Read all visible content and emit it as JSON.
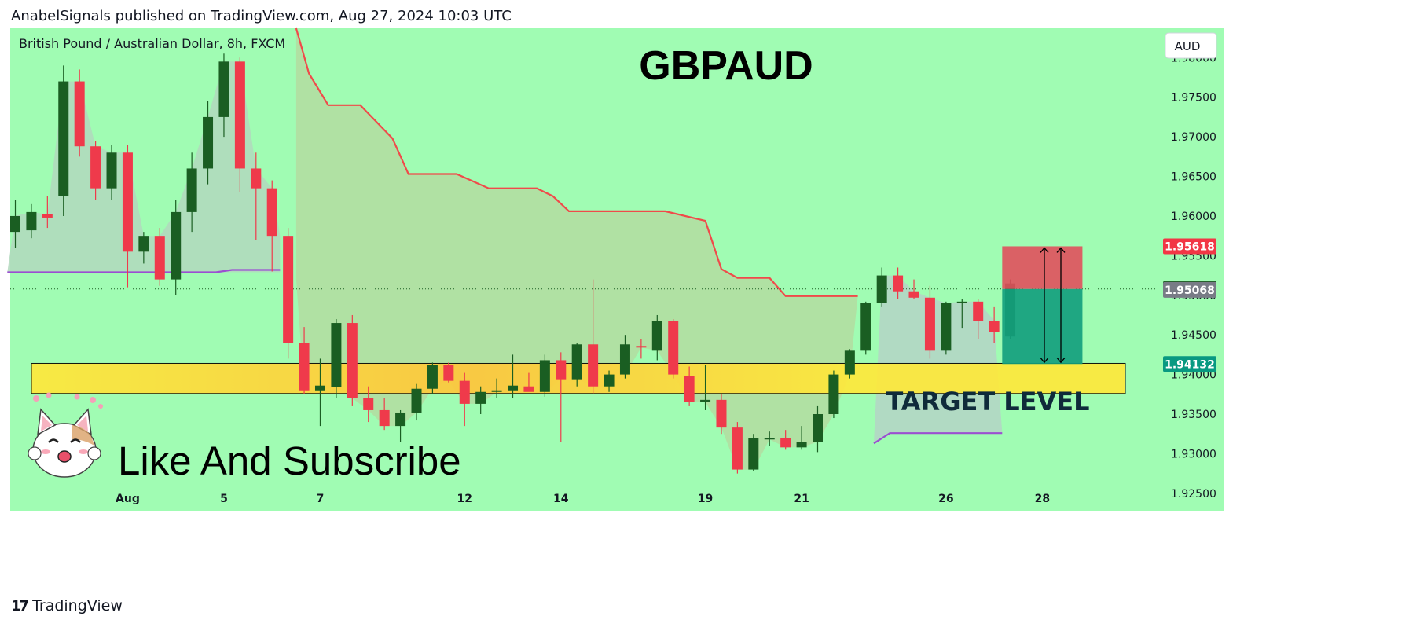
{
  "header": {
    "published": "AnabelSignals published on TradingView.com, Aug 27, 2024 10:03 UTC"
  },
  "footer": {
    "brand": "TradingView",
    "brand_logo": "17"
  },
  "colors": {
    "background": "#a0fcb3",
    "bull": "#1a5e22",
    "bear": "#ef3a4b",
    "resistance": "#f04a4a",
    "support": "#9b4fd1",
    "zone": "#ffe93b",
    "zone_center": "#ffc73b",
    "stop": "#e0505c",
    "target": "#13a07e"
  },
  "chart_data": {
    "type": "candlestick",
    "symbol_label": "British Pound  / Australian Dollar, 8h, FXCM",
    "title": "GBPAUD",
    "currency": "AUD",
    "annotations": {
      "target": "TARGET LEVEL",
      "cta": "Like And Subscribe"
    },
    "ylim": [
      1.9228,
      1.9837
    ],
    "yticks": [
      "1.98000",
      "1.97500",
      "1.97000",
      "1.96500",
      "1.96000",
      "1.95500",
      "1.95000",
      "1.94500",
      "1.94000",
      "1.93500",
      "1.93000",
      "1.92500"
    ],
    "xticks": [
      {
        "label": "Aug",
        "i": 7
      },
      {
        "label": "5",
        "i": 13
      },
      {
        "label": "7",
        "i": 19
      },
      {
        "label": "12",
        "i": 28
      },
      {
        "label": "14",
        "i": 34
      },
      {
        "label": "19",
        "i": 43
      },
      {
        "label": "21",
        "i": 49
      },
      {
        "label": "26",
        "i": 58
      },
      {
        "label": "28",
        "i": 64
      }
    ],
    "price_tags": [
      {
        "value": "1.95618",
        "price": 1.95618,
        "color": "#f23645"
      },
      {
        "value": "1.95079",
        "price": 1.95079,
        "color": "#1a5e22"
      },
      {
        "value": "1.95068",
        "price": 1.95068,
        "color": "#787b86"
      },
      {
        "value": "1.94132",
        "price": 1.94132,
        "color": "#089981"
      }
    ],
    "current_price": 1.95079,
    "target_zone": [
      1.9376,
      1.9414
    ],
    "position": {
      "entry": 1.95079,
      "stop": 1.95618,
      "target": 1.94132,
      "from_i": 61.5,
      "to_i": 66.5
    },
    "candles": [
      {
        "o": 1.958,
        "h": 1.962,
        "l": 1.956,
        "c": 1.96
      },
      {
        "o": 1.9582,
        "h": 1.9615,
        "l": 1.9572,
        "c": 1.9605
      },
      {
        "o": 1.9602,
        "h": 1.9625,
        "l": 1.9585,
        "c": 1.9598
      },
      {
        "o": 1.9625,
        "h": 1.979,
        "l": 1.96,
        "c": 1.977
      },
      {
        "o": 1.977,
        "h": 1.9785,
        "l": 1.9675,
        "c": 1.9688
      },
      {
        "o": 1.9688,
        "h": 1.9695,
        "l": 1.962,
        "c": 1.9635
      },
      {
        "o": 1.9635,
        "h": 1.969,
        "l": 1.962,
        "c": 1.968
      },
      {
        "o": 1.968,
        "h": 1.969,
        "l": 1.951,
        "c": 1.9555
      },
      {
        "o": 1.9555,
        "h": 1.958,
        "l": 1.954,
        "c": 1.9575
      },
      {
        "o": 1.9575,
        "h": 1.9585,
        "l": 1.9512,
        "c": 1.952
      },
      {
        "o": 1.952,
        "h": 1.962,
        "l": 1.95,
        "c": 1.9605
      },
      {
        "o": 1.9605,
        "h": 1.968,
        "l": 1.958,
        "c": 1.966
      },
      {
        "o": 1.966,
        "h": 1.9745,
        "l": 1.964,
        "c": 1.9725
      },
      {
        "o": 1.9725,
        "h": 1.9805,
        "l": 1.97,
        "c": 1.9795
      },
      {
        "o": 1.9795,
        "h": 1.98,
        "l": 1.963,
        "c": 1.966
      },
      {
        "o": 1.966,
        "h": 1.968,
        "l": 1.957,
        "c": 1.9635
      },
      {
        "o": 1.9635,
        "h": 1.9645,
        "l": 1.953,
        "c": 1.9575
      },
      {
        "o": 1.9575,
        "h": 1.9585,
        "l": 1.942,
        "c": 1.944
      },
      {
        "o": 1.944,
        "h": 1.946,
        "l": 1.9375,
        "c": 1.938
      },
      {
        "o": 1.938,
        "h": 1.942,
        "l": 1.9335,
        "c": 1.9386
      },
      {
        "o": 1.9384,
        "h": 1.947,
        "l": 1.937,
        "c": 1.9465
      },
      {
        "o": 1.9465,
        "h": 1.9475,
        "l": 1.936,
        "c": 1.937
      },
      {
        "o": 1.937,
        "h": 1.9385,
        "l": 1.934,
        "c": 1.9355
      },
      {
        "o": 1.9355,
        "h": 1.937,
        "l": 1.933,
        "c": 1.9335
      },
      {
        "o": 1.9335,
        "h": 1.9355,
        "l": 1.9315,
        "c": 1.9352
      },
      {
        "o": 1.9352,
        "h": 1.9388,
        "l": 1.9342,
        "c": 1.9382
      },
      {
        "o": 1.9382,
        "h": 1.9415,
        "l": 1.9375,
        "c": 1.9412
      },
      {
        "o": 1.9412,
        "h": 1.9415,
        "l": 1.939,
        "c": 1.9392
      },
      {
        "o": 1.9392,
        "h": 1.9402,
        "l": 1.9335,
        "c": 1.9363
      },
      {
        "o": 1.9363,
        "h": 1.9385,
        "l": 1.935,
        "c": 1.9378
      },
      {
        "o": 1.9378,
        "h": 1.9395,
        "l": 1.937,
        "c": 1.938
      },
      {
        "o": 1.938,
        "h": 1.9425,
        "l": 1.937,
        "c": 1.9386
      },
      {
        "o": 1.9385,
        "h": 1.9402,
        "l": 1.938,
        "c": 1.9378
      },
      {
        "o": 1.9378,
        "h": 1.9425,
        "l": 1.9372,
        "c": 1.9418
      },
      {
        "o": 1.9418,
        "h": 1.9428,
        "l": 1.9315,
        "c": 1.9394
      },
      {
        "o": 1.9394,
        "h": 1.944,
        "l": 1.9385,
        "c": 1.9438
      },
      {
        "o": 1.9438,
        "h": 1.952,
        "l": 1.9375,
        "c": 1.9385
      },
      {
        "o": 1.9385,
        "h": 1.9405,
        "l": 1.9378,
        "c": 1.94
      },
      {
        "o": 1.94,
        "h": 1.945,
        "l": 1.9395,
        "c": 1.9438
      },
      {
        "o": 1.9436,
        "h": 1.9445,
        "l": 1.942,
        "c": 1.9434
      },
      {
        "o": 1.943,
        "h": 1.9475,
        "l": 1.9418,
        "c": 1.9468
      },
      {
        "o": 1.9468,
        "h": 1.947,
        "l": 1.9395,
        "c": 1.94
      },
      {
        "o": 1.9398,
        "h": 1.941,
        "l": 1.936,
        "c": 1.9365
      },
      {
        "o": 1.9365,
        "h": 1.9412,
        "l": 1.9355,
        "c": 1.9368
      },
      {
        "o": 1.9368,
        "h": 1.9375,
        "l": 1.9325,
        "c": 1.9333
      },
      {
        "o": 1.9333,
        "h": 1.934,
        "l": 1.9275,
        "c": 1.928
      },
      {
        "o": 1.928,
        "h": 1.9325,
        "l": 1.9278,
        "c": 1.932
      },
      {
        "o": 1.9318,
        "h": 1.9328,
        "l": 1.931,
        "c": 1.932
      },
      {
        "o": 1.932,
        "h": 1.933,
        "l": 1.9305,
        "c": 1.9308
      },
      {
        "o": 1.9308,
        "h": 1.9335,
        "l": 1.9305,
        "c": 1.9315
      },
      {
        "o": 1.9315,
        "h": 1.936,
        "l": 1.9302,
        "c": 1.935
      },
      {
        "o": 1.935,
        "h": 1.9405,
        "l": 1.9345,
        "c": 1.94
      },
      {
        "o": 1.94,
        "h": 1.9432,
        "l": 1.9395,
        "c": 1.943
      },
      {
        "o": 1.943,
        "h": 1.9492,
        "l": 1.9425,
        "c": 1.949
      },
      {
        "o": 1.949,
        "h": 1.9535,
        "l": 1.9485,
        "c": 1.9525
      },
      {
        "o": 1.9525,
        "h": 1.9535,
        "l": 1.9495,
        "c": 1.9505
      },
      {
        "o": 1.9505,
        "h": 1.952,
        "l": 1.9495,
        "c": 1.9497
      },
      {
        "o": 1.9497,
        "h": 1.9512,
        "l": 1.942,
        "c": 1.943
      },
      {
        "o": 1.943,
        "h": 1.9492,
        "l": 1.9425,
        "c": 1.949
      },
      {
        "o": 1.949,
        "h": 1.9495,
        "l": 1.9458,
        "c": 1.9492
      },
      {
        "o": 1.9492,
        "h": 1.9495,
        "l": 1.9445,
        "c": 1.9468
      },
      {
        "o": 1.9468,
        "h": 1.9485,
        "l": 1.944,
        "c": 1.9454
      },
      {
        "o": 1.9448,
        "h": 1.952,
        "l": 1.9445,
        "c": 1.9515
      }
    ],
    "resistance_line": [
      {
        "i": 17.5,
        "p": 1.9837
      },
      {
        "i": 18.3,
        "p": 1.978
      },
      {
        "i": 19.5,
        "p": 1.974
      },
      {
        "i": 21.5,
        "p": 1.974
      },
      {
        "i": 23.5,
        "p": 1.9698
      },
      {
        "i": 24.5,
        "p": 1.9653
      },
      {
        "i": 27.5,
        "p": 1.9653
      },
      {
        "i": 29.5,
        "p": 1.9635
      },
      {
        "i": 32.5,
        "p": 1.9635
      },
      {
        "i": 33.5,
        "p": 1.9625
      },
      {
        "i": 34.5,
        "p": 1.9606
      },
      {
        "i": 40.5,
        "p": 1.9606
      },
      {
        "i": 43,
        "p": 1.9594
      },
      {
        "i": 44,
        "p": 1.9533
      },
      {
        "i": 45,
        "p": 1.9522
      },
      {
        "i": 47,
        "p": 1.9522
      },
      {
        "i": 48,
        "p": 1.9499
      },
      {
        "i": 52.5,
        "p": 1.9499
      }
    ],
    "support_line_1": [
      {
        "i": -0.5,
        "p": 1.9529
      },
      {
        "i": 12.5,
        "p": 1.9529
      },
      {
        "i": 13.5,
        "p": 1.9532
      },
      {
        "i": 16.5,
        "p": 1.9532
      }
    ],
    "support_line_2": [
      {
        "i": 53.5,
        "p": 1.9313
      },
      {
        "i": 54.5,
        "p": 1.9326
      },
      {
        "i": 61.5,
        "p": 1.9326
      }
    ]
  }
}
